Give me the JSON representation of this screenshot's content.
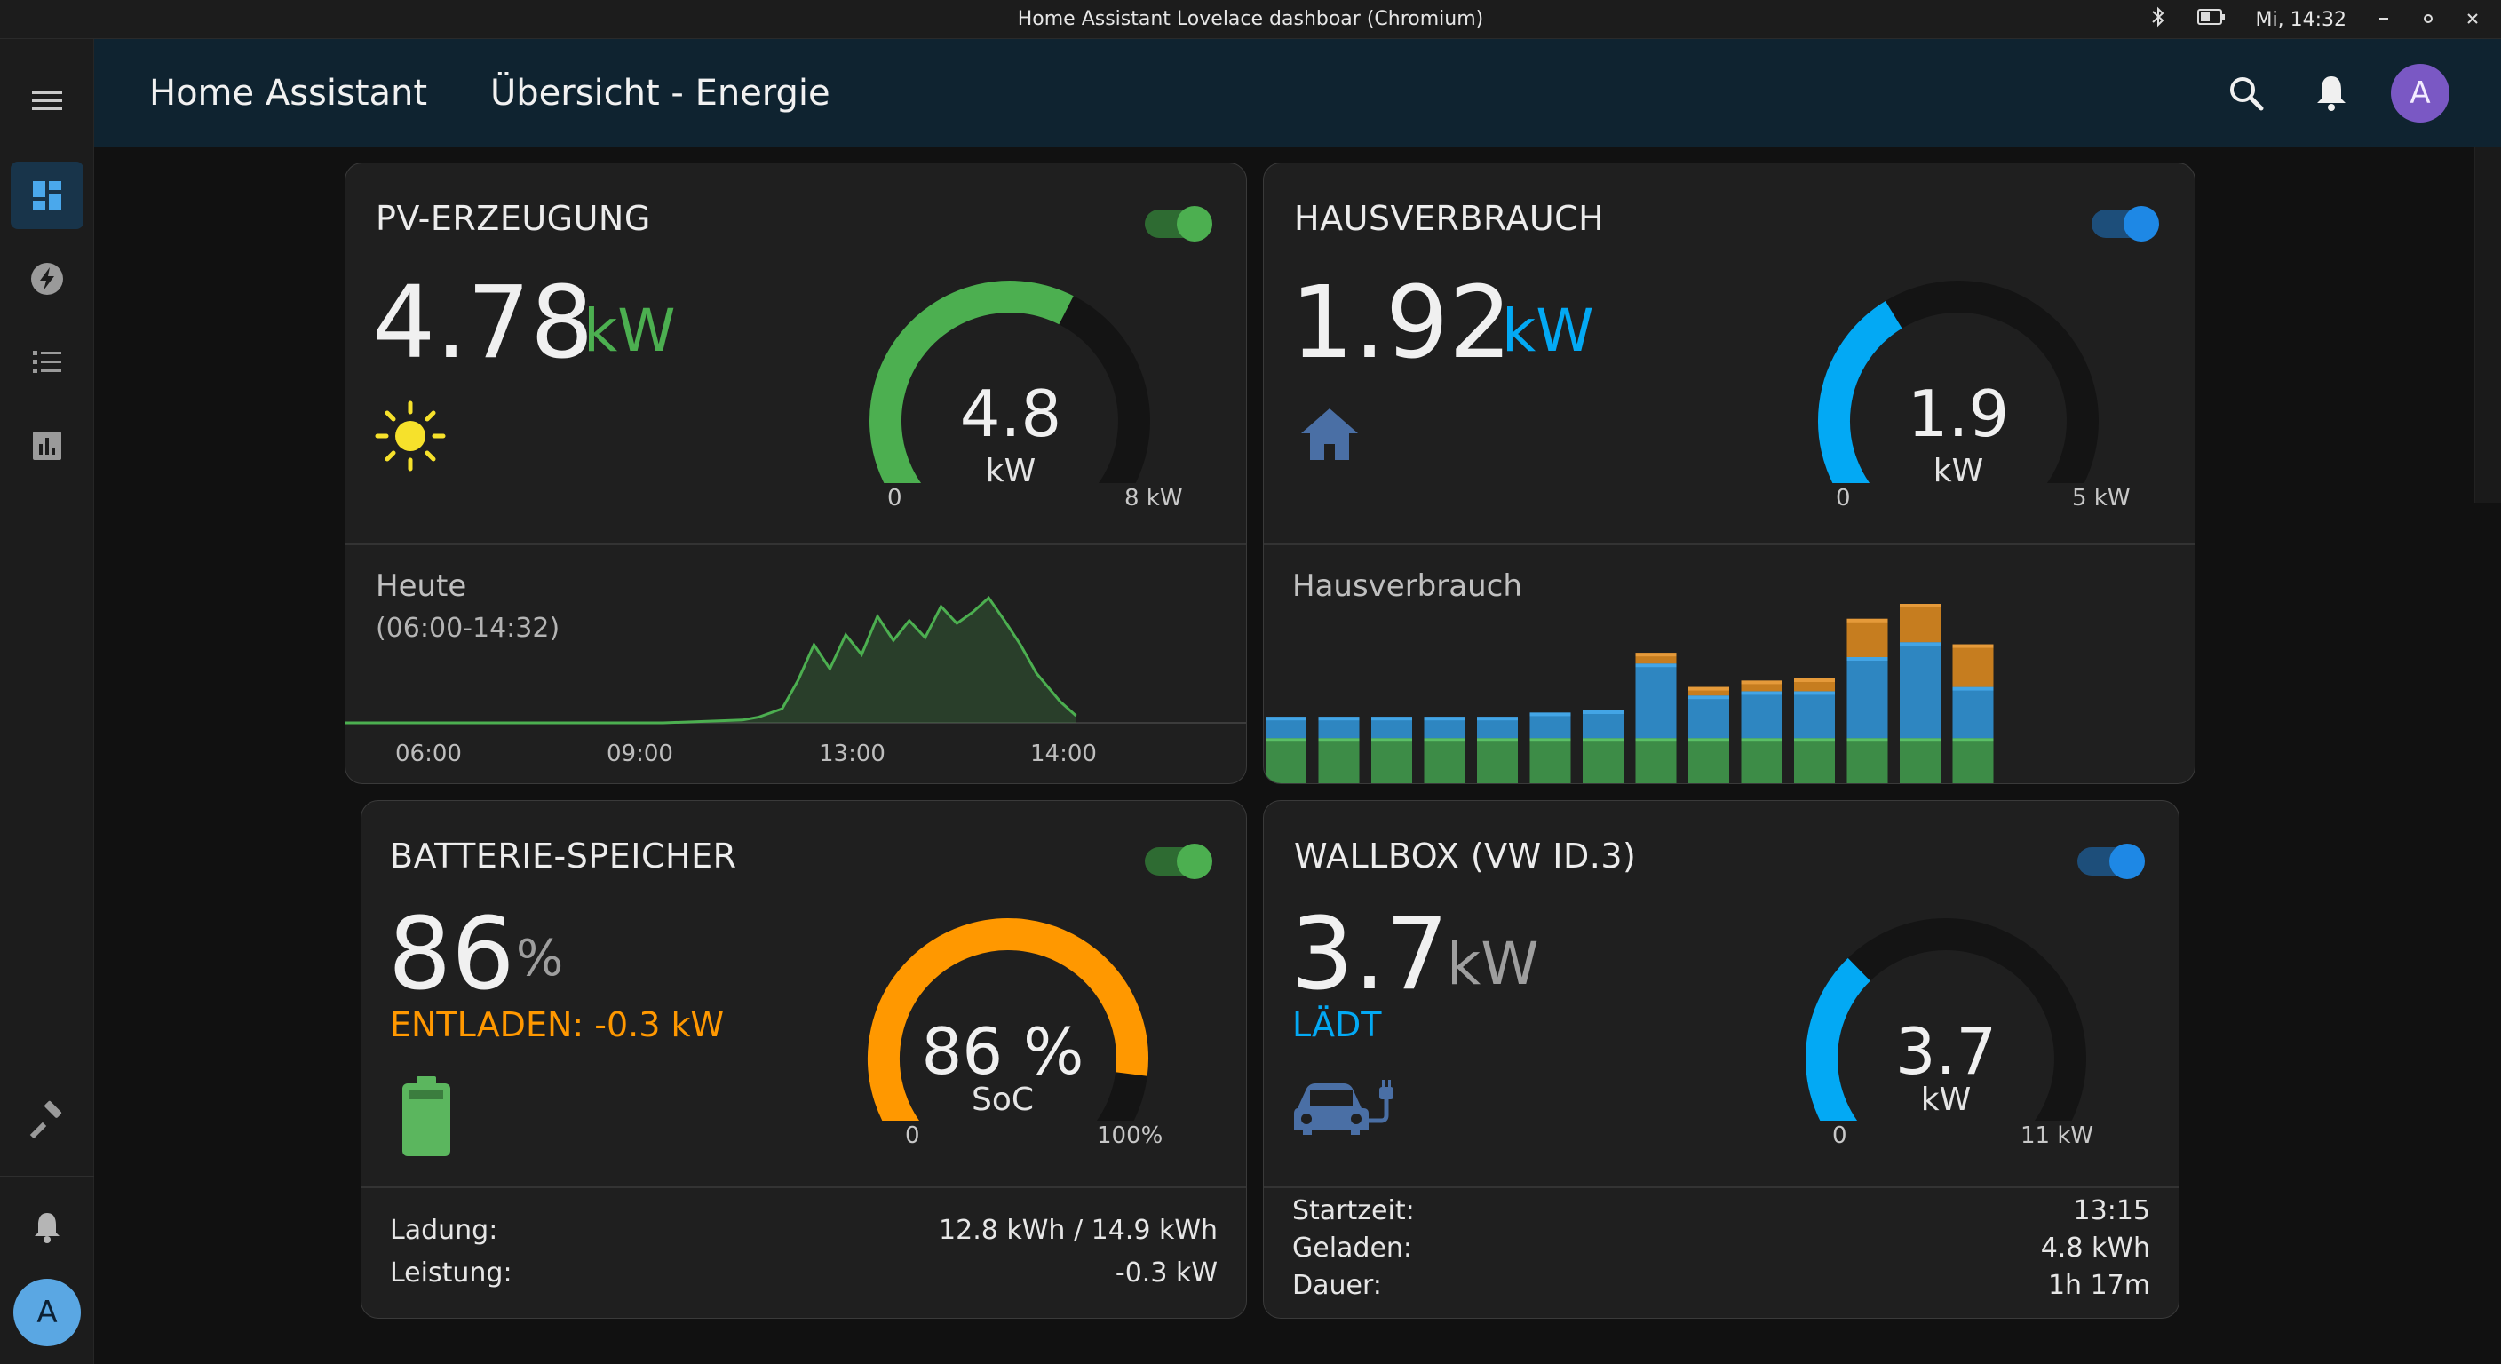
{
  "window": {
    "title": "Home Assistant Lovelace dashboar (Chromium)",
    "clock": "Mi, 14:32"
  },
  "header": {
    "app_name": "Home Assistant",
    "view_title": "Übersicht - Energie",
    "avatar_letter": "A"
  },
  "sidebar": {
    "items": [
      {
        "name": "dashboard-icon",
        "active": true
      },
      {
        "name": "energy-icon",
        "active": false
      },
      {
        "name": "logbook-icon",
        "active": false
      },
      {
        "name": "history-icon",
        "active": false
      }
    ],
    "user_letter": "A"
  },
  "colors": {
    "green": "#4caf50",
    "blue": "#03a9f4",
    "orange": "#ff9800",
    "toggle_green": "#4caf50",
    "toggle_blue": "#1e88e5"
  },
  "cards": {
    "pv": {
      "title": "PV-ERZEUGUNG",
      "value": "4.78",
      "unit": "kW",
      "icon": "sun-icon",
      "gauge": {
        "value_text": "4.8",
        "unit": "kW",
        "min": "0",
        "max": "8 kW",
        "fraction": 0.6
      },
      "history": {
        "label": "Heute",
        "range": "(06:00-14:32)",
        "ticks": [
          "06:00",
          "09:00",
          "13:00",
          "14:00"
        ]
      }
    },
    "house": {
      "title": "HAUSVERBRAUCH",
      "value": "1.92",
      "unit": "kW",
      "icon": "home-icon",
      "gauge": {
        "value_text": "1.9",
        "unit": "kW",
        "min": "0",
        "max": "5 kW",
        "fraction": 0.384
      },
      "history": {
        "label": "Hausverbrauch"
      }
    },
    "battery": {
      "title": "BATTERIE-SPEICHER",
      "value": "86",
      "unit": "%",
      "status": "ENTLADEN: -0.3 kW",
      "icon": "battery-icon",
      "gauge": {
        "value_text": "86 %",
        "unit": "SoC",
        "min": "0",
        "max": "100%",
        "fraction": 0.86
      },
      "rows": [
        {
          "label": "Ladung:",
          "value": "12.8 kWh / 14.9 kWh"
        },
        {
          "label": "Leistung:",
          "value": "-0.3 kW"
        }
      ]
    },
    "wallbox": {
      "title": "WALLBOX (VW ID.3)",
      "value": "3.7",
      "unit": "kW",
      "status": "LÄDT",
      "icon": "ev-charging-icon",
      "gauge": {
        "value_text": "3.7",
        "unit": "kW",
        "min": "0",
        "max": "11 kW",
        "fraction": 0.336
      },
      "rows": [
        {
          "label": "Startzeit:",
          "value": "13:15"
        },
        {
          "label": "Geladen:",
          "value": "4.8 kWh"
        },
        {
          "label": "Dauer:",
          "value": "1h 17m"
        }
      ]
    }
  },
  "chart_data": [
    {
      "type": "area",
      "x_ticks": [
        "06:00",
        "09:00",
        "13:00",
        "14:00"
      ],
      "x": [
        0,
        0.2,
        0.4,
        0.5,
        0.52,
        0.55,
        0.57,
        0.59,
        0.61,
        0.63,
        0.65,
        0.67,
        0.69,
        0.71,
        0.73,
        0.75,
        0.77,
        0.79,
        0.81,
        0.83,
        0.85,
        0.87,
        0.9,
        0.92
      ],
      "values": [
        0,
        0,
        0,
        0.02,
        0.04,
        0.1,
        0.3,
        0.55,
        0.38,
        0.62,
        0.48,
        0.75,
        0.58,
        0.72,
        0.6,
        0.82,
        0.7,
        0.78,
        0.88,
        0.72,
        0.55,
        0.35,
        0.15,
        0.05
      ]
    },
    {
      "type": "bar",
      "series": [
        {
          "values": [
            0.22,
            0.22,
            0.22,
            0.22,
            0.22,
            0.22,
            0.22,
            0.22,
            0.22,
            0.22,
            0.22,
            0.22,
            0.22,
            0.22
          ]
        },
        {
          "values": [
            0.1,
            0.1,
            0.1,
            0.1,
            0.1,
            0.12,
            0.13,
            0.35,
            0.2,
            0.22,
            0.22,
            0.38,
            0.45,
            0.24
          ]
        },
        {
          "values": [
            0,
            0,
            0,
            0,
            0,
            0,
            0,
            0.05,
            0.04,
            0.05,
            0.06,
            0.18,
            0.18,
            0.2
          ]
        }
      ]
    }
  ]
}
